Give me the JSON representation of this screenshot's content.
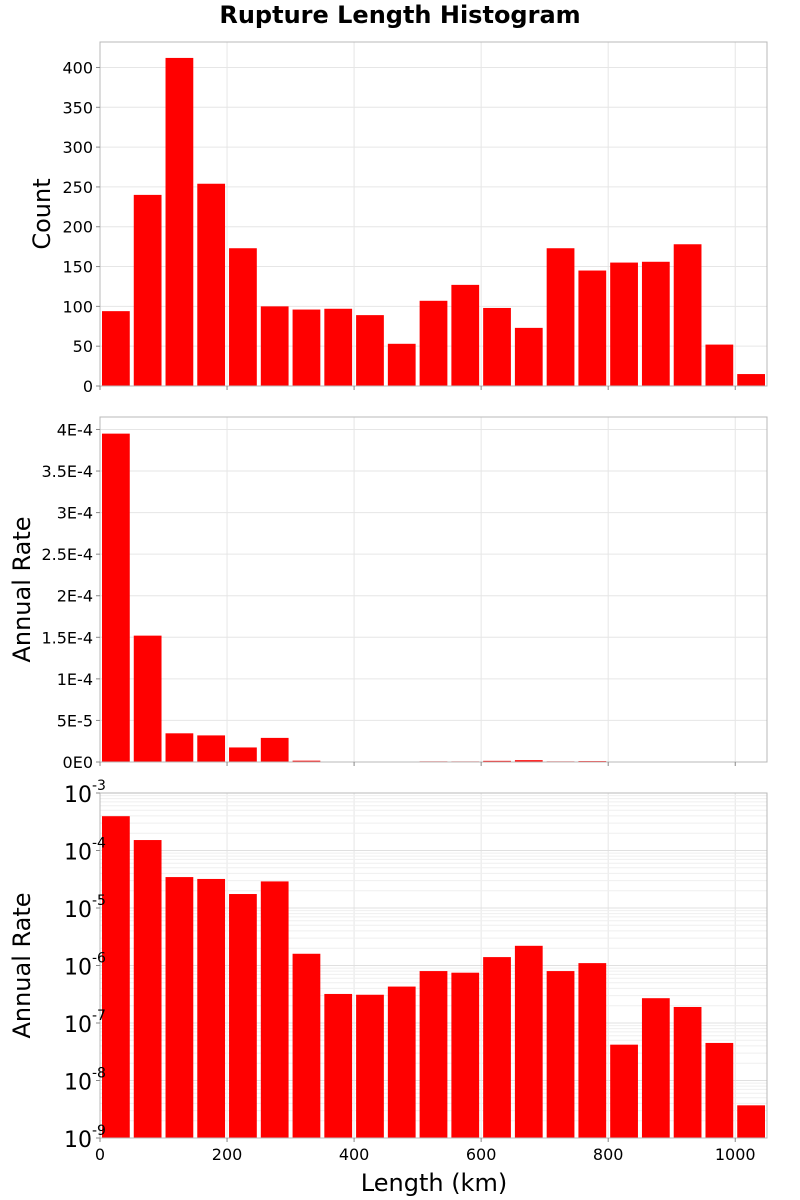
{
  "chart_data": {
    "type": "bar",
    "title": "Rupture Length Histogram",
    "xlabel": "Length (km)",
    "xlim": [
      0,
      1050
    ],
    "x_ticks": [
      0,
      200,
      400,
      600,
      800,
      1000
    ],
    "x_tick_labels": [
      "0",
      "200",
      "400",
      "600",
      "800",
      "1000"
    ],
    "bin_width": 50,
    "bin_centers": [
      25,
      75,
      125,
      175,
      225,
      275,
      325,
      375,
      425,
      475,
      525,
      575,
      625,
      675,
      725,
      775,
      825,
      875,
      925,
      975,
      1025
    ],
    "bar_color": "#ff0000",
    "panels": [
      {
        "ylabel": "Count",
        "scale": "linear",
        "ylim": [
          0,
          432
        ],
        "y_ticks": [
          0,
          50,
          100,
          150,
          200,
          250,
          300,
          350,
          400
        ],
        "y_tick_labels": [
          "0",
          "50",
          "100",
          "150",
          "200",
          "250",
          "300",
          "350",
          "400"
        ],
        "values": [
          94,
          240,
          412,
          254,
          173,
          100,
          96,
          97,
          89,
          53,
          107,
          127,
          98,
          73,
          173,
          145,
          155,
          156,
          178,
          52,
          15
        ]
      },
      {
        "ylabel": "Annual Rate",
        "scale": "linear",
        "ylim": [
          0,
          0.000415
        ],
        "y_ticks": [
          0,
          5e-05,
          0.0001,
          0.00015,
          0.0002,
          0.00025,
          0.0003,
          0.00035,
          0.0004
        ],
        "y_tick_labels": [
          "0E0",
          "5E-5",
          "1E-4",
          "1.5E-4",
          "2E-4",
          "2.5E-4",
          "3E-4",
          "3.5E-4",
          "4E-4"
        ],
        "values": [
          0.000395,
          0.000152,
          3.45e-05,
          3.2e-05,
          1.75e-05,
          2.9e-05,
          1.6e-06,
          3.2e-07,
          3.1e-07,
          4.3e-07,
          8e-07,
          7.5e-07,
          1.4e-06,
          2.2e-06,
          8e-07,
          1.1e-06,
          4.2e-08,
          2.7e-07,
          1.9e-07,
          4.5e-08,
          3.7e-09
        ]
      },
      {
        "ylabel": "Annual Rate",
        "scale": "log",
        "ylim_exp": [
          -9,
          -3
        ],
        "y_ticks_exp": [
          -9,
          -8,
          -7,
          -6,
          -5,
          -4,
          -3
        ],
        "y_tick_base": "10",
        "y_tick_exponents": [
          "-9",
          "-8",
          "-7",
          "-6",
          "-5",
          "-4",
          "-3"
        ],
        "values": [
          0.000395,
          0.000152,
          3.45e-05,
          3.2e-05,
          1.75e-05,
          2.9e-05,
          1.6e-06,
          3.2e-07,
          3.1e-07,
          4.3e-07,
          8e-07,
          7.5e-07,
          1.4e-06,
          2.2e-06,
          8e-07,
          1.1e-06,
          4.2e-08,
          2.7e-07,
          1.9e-07,
          4.5e-08,
          3.7e-09
        ]
      }
    ]
  }
}
